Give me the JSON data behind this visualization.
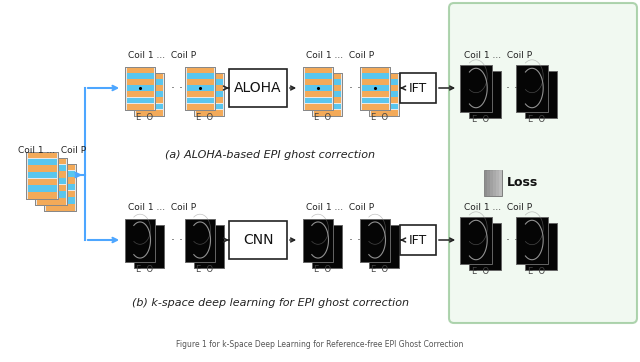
{
  "bg_color": "#ffffff",
  "green_box_color": "#e8f5e9",
  "green_box_edge": "#7cb87c",
  "arrow_color_blue": "#4da6ff",
  "arrow_color_dark": "#333333",
  "stripe_orange": "#f5a040",
  "stripe_blue": "#40c0f0",
  "stripe_gray": "#c0c0c0",
  "label_a": "(a) ALOHA-based EPI ghost correction",
  "label_b": "(b) k-space deep learning for EPI ghost correction",
  "label_coil": "Coil 1 ...  Coil P",
  "label_EO": "E O",
  "label_aloha": "ALOHA",
  "label_cnn": "CNN",
  "label_ift": "IFT",
  "label_loss": "Loss"
}
